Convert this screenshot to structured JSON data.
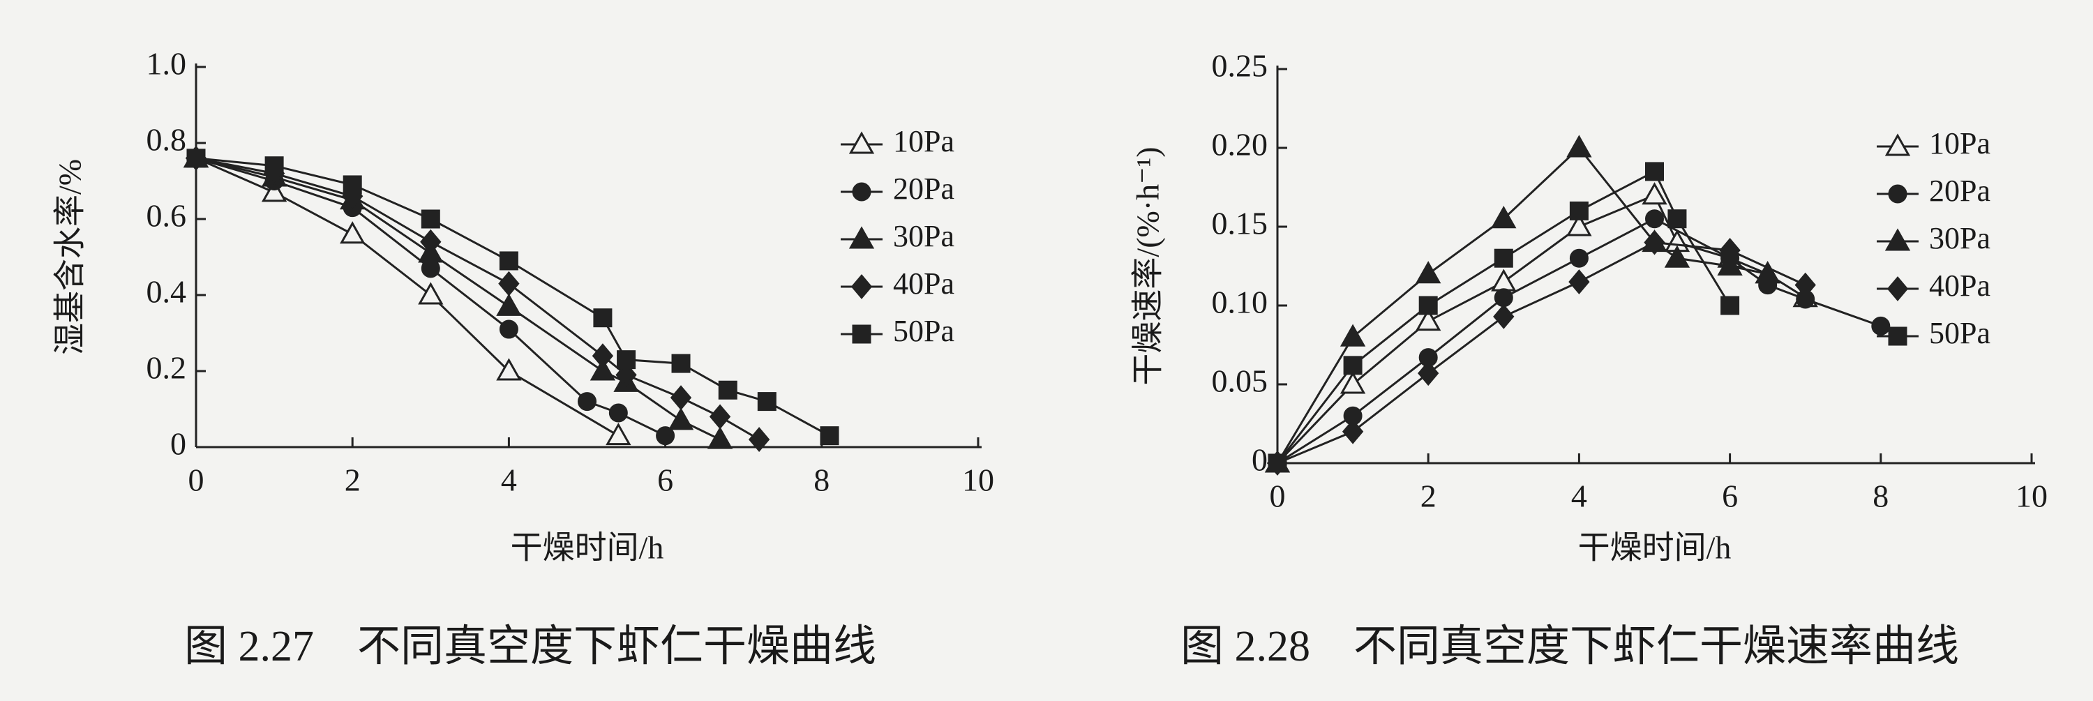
{
  "chart_data": [
    {
      "type": "line",
      "title": "图 2.27　不同真空度下虾仁干燥曲线",
      "xlabel": "干燥时间/h",
      "ylabel": "湿基含水率/%",
      "xlim": [
        0,
        10
      ],
      "xticks": [
        0,
        2,
        4,
        6,
        8,
        10
      ],
      "ylim": [
        0,
        1
      ],
      "yticks": [
        0,
        0.2,
        0.4,
        0.6,
        0.8,
        {
          "value": 1,
          "label": "1.0"
        }
      ],
      "legend": "right",
      "series": [
        {
          "name": "10Pa",
          "color": "#222222",
          "marker": "triangle-open",
          "x": [
            0,
            1,
            2,
            3,
            4,
            5.4
          ],
          "values": [
            0.76,
            0.67,
            0.56,
            0.4,
            0.2,
            0.03
          ]
        },
        {
          "name": "20Pa",
          "color": "#222222",
          "marker": "circle",
          "x": [
            0,
            1,
            2,
            3,
            4,
            5,
            5.4,
            6
          ],
          "values": [
            0.76,
            0.7,
            0.63,
            0.47,
            0.31,
            0.12,
            0.09,
            0.03
          ]
        },
        {
          "name": "30Pa",
          "color": "#222222",
          "marker": "triangle",
          "x": [
            0,
            1,
            2,
            3,
            4,
            5.2,
            5.5,
            6.2,
            6.7
          ],
          "values": [
            0.76,
            0.71,
            0.65,
            0.51,
            0.37,
            0.2,
            0.17,
            0.07,
            0.02
          ]
        },
        {
          "name": "40Pa",
          "color": "#222222",
          "marker": "diamond",
          "x": [
            0,
            1,
            2,
            3,
            4,
            5.2,
            5.5,
            6.2,
            6.7,
            7.2
          ],
          "values": [
            0.76,
            0.72,
            0.66,
            0.54,
            0.43,
            0.24,
            0.19,
            0.13,
            0.08,
            0.02
          ]
        },
        {
          "name": "50Pa",
          "color": "#222222",
          "marker": "square",
          "x": [
            0,
            1,
            2,
            3,
            4,
            5.2,
            5.5,
            6.2,
            6.8,
            7.3,
            8.1
          ],
          "values": [
            0.76,
            0.74,
            0.69,
            0.6,
            0.49,
            0.34,
            0.23,
            0.22,
            0.15,
            0.12,
            0.03
          ]
        }
      ]
    },
    {
      "type": "line",
      "title": "图 2.28　不同真空度下虾仁干燥速率曲线",
      "xlabel": "干燥时间/h",
      "ylabel": "干燥速率/(%·h⁻¹)",
      "xlim": [
        0,
        10
      ],
      "xticks": [
        0,
        2,
        4,
        6,
        8,
        10
      ],
      "ylim": [
        0,
        0.25
      ],
      "yticks": [
        0,
        0.05,
        {
          "value": 0.1,
          "label": "0.10"
        },
        0.15,
        {
          "value": 0.2,
          "label": "0.20"
        },
        0.25
      ],
      "legend": "right",
      "series": [
        {
          "name": "10Pa",
          "color": "#222222",
          "marker": "triangle-open",
          "x": [
            0,
            1,
            2,
            3,
            4,
            5,
            5.3,
            6,
            6.5,
            7
          ],
          "values": [
            0,
            0.05,
            0.09,
            0.115,
            0.15,
            0.17,
            0.14,
            0.13,
            0.12,
            0.105
          ]
        },
        {
          "name": "20Pa",
          "color": "#222222",
          "marker": "circle",
          "x": [
            0,
            1,
            2,
            3,
            4,
            5,
            6,
            6.5,
            7,
            8
          ],
          "values": [
            0,
            0.03,
            0.067,
            0.105,
            0.13,
            0.155,
            0.13,
            0.113,
            0.104,
            0.087
          ]
        },
        {
          "name": "30Pa",
          "color": "#222222",
          "marker": "triangle",
          "x": [
            0,
            1,
            2,
            3,
            4,
            5,
            5.3,
            6,
            6.5
          ],
          "values": [
            0,
            0.08,
            0.12,
            0.155,
            0.2,
            0.14,
            0.13,
            0.125,
            0.12
          ]
        },
        {
          "name": "40Pa",
          "color": "#222222",
          "marker": "diamond",
          "x": [
            0,
            1,
            2,
            3,
            4,
            5,
            6,
            7
          ],
          "values": [
            0,
            0.02,
            0.057,
            0.093,
            0.115,
            0.14,
            0.135,
            0.113
          ]
        },
        {
          "name": "50Pa",
          "color": "#222222",
          "marker": "square",
          "x": [
            0,
            1,
            2,
            3,
            4,
            5,
            5.3,
            6
          ],
          "values": [
            0,
            0.062,
            0.1,
            0.13,
            0.16,
            0.185,
            0.155,
            0.1
          ]
        }
      ]
    }
  ]
}
